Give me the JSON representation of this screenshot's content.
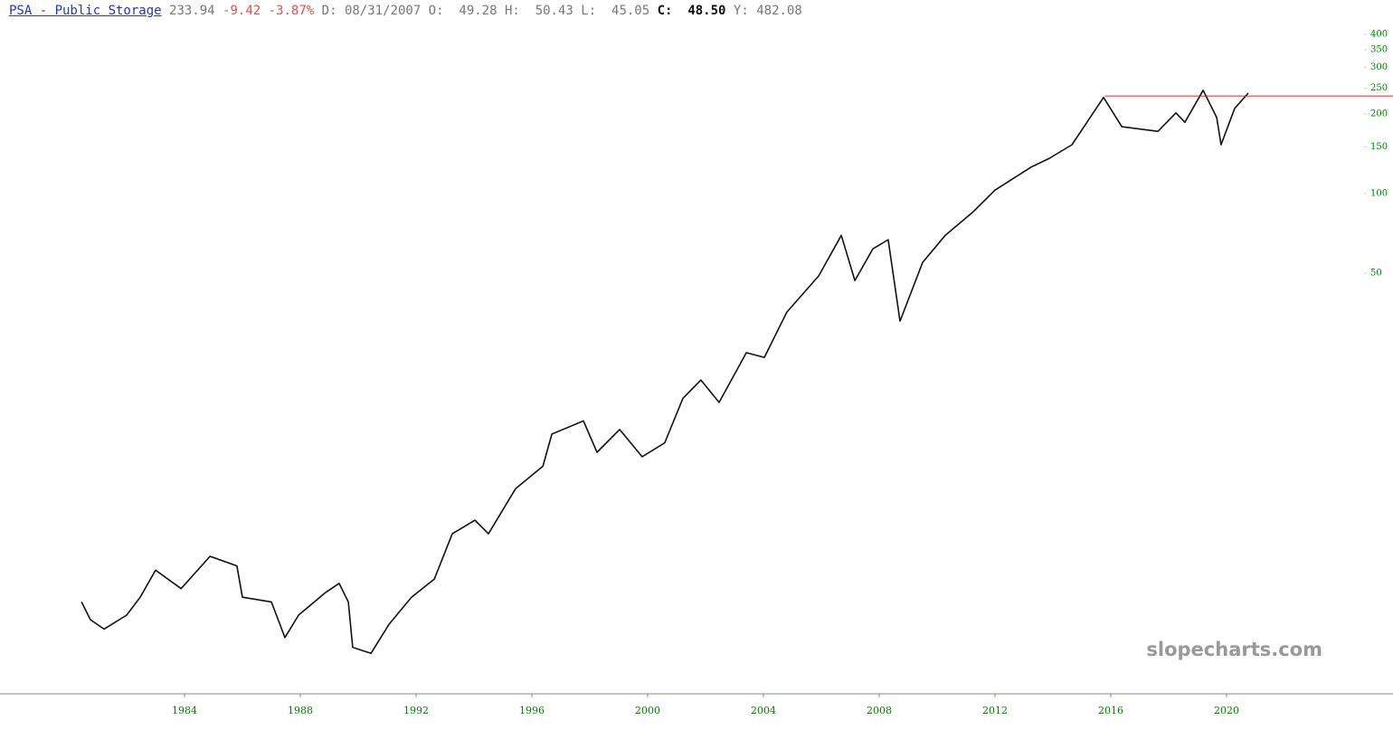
{
  "chart_data": {
    "type": "line",
    "header": {
      "title": "PSA - Public Storage",
      "last": 233.94,
      "change": -9.42,
      "change_pct": "-3.87%",
      "date_label": "D:",
      "date": "08/31/2007",
      "open_label": "O:",
      "open": 49.28,
      "high_label": "H:",
      "high": 50.43,
      "low_label": "L:",
      "low": 45.05,
      "close_label": "C:",
      "close": "48.50",
      "y_label": "Y:",
      "y_value": 482.08
    },
    "watermark": "slopecharts.com",
    "color": "#111111",
    "hline": {
      "from_x": 2015.8,
      "color": "#e02020"
    },
    "x": [
      1980.44,
      1980.75,
      1981.22,
      1982.0,
      1982.47,
      1983.0,
      1983.88,
      1984.88,
      1985.81,
      1986.0,
      1987.0,
      1987.47,
      1987.94,
      1988.88,
      1989.34,
      1989.66,
      1989.81,
      1990.44,
      1991.06,
      1991.84,
      1992.63,
      1993.25,
      1994.03,
      1994.5,
      1995.44,
      1996.38,
      1996.69,
      1997.78,
      1998.25,
      1999.03,
      1999.81,
      2000.59,
      2001.22,
      2001.84,
      2002.47,
      2003.41,
      2004.03,
      2004.81,
      2005.91,
      2006.69,
      2007.16,
      2007.78,
      2008.31,
      2008.72,
      2009.5,
      2010.28,
      2011.22,
      2012.0,
      2013.25,
      2013.88,
      2014.66,
      2015.75,
      2016.38,
      2017.63,
      2018.25,
      2018.56,
      2019.19,
      2019.66,
      2019.81,
      2020.28,
      2020.75
    ],
    "values": [
      2.85,
      2.44,
      2.25,
      2.54,
      2.97,
      3.76,
      3.2,
      4.24,
      3.9,
      2.97,
      2.85,
      2.09,
      2.54,
      3.1,
      3.35,
      2.85,
      1.92,
      1.82,
      2.34,
      2.97,
      3.48,
      5.16,
      5.81,
      5.16,
      7.65,
      9.3,
      12.3,
      13.8,
      10.5,
      12.8,
      10.1,
      11.4,
      16.8,
      19.7,
      16.2,
      25,
      24,
      35.6,
      48.8,
      69.5,
      46.9,
      61.8,
      66.9,
      32.9,
      54.9,
      69.5,
      84.8,
      103,
      126,
      136,
      153,
      231,
      179,
      172,
      202,
      186,
      246,
      194,
      153,
      210,
      240
    ],
    "xlim": [
      1977.625,
      2025.75
    ],
    "xticks": [
      1984,
      1988,
      1992,
      1996,
      2000,
      2004,
      2008,
      2012,
      2016,
      2020
    ],
    "ylim": [
      1.28,
      540
    ],
    "yticks": [
      400,
      350,
      300,
      250,
      200,
      150,
      100,
      50
    ],
    "log_y": true,
    "tick_color": "#008000"
  }
}
